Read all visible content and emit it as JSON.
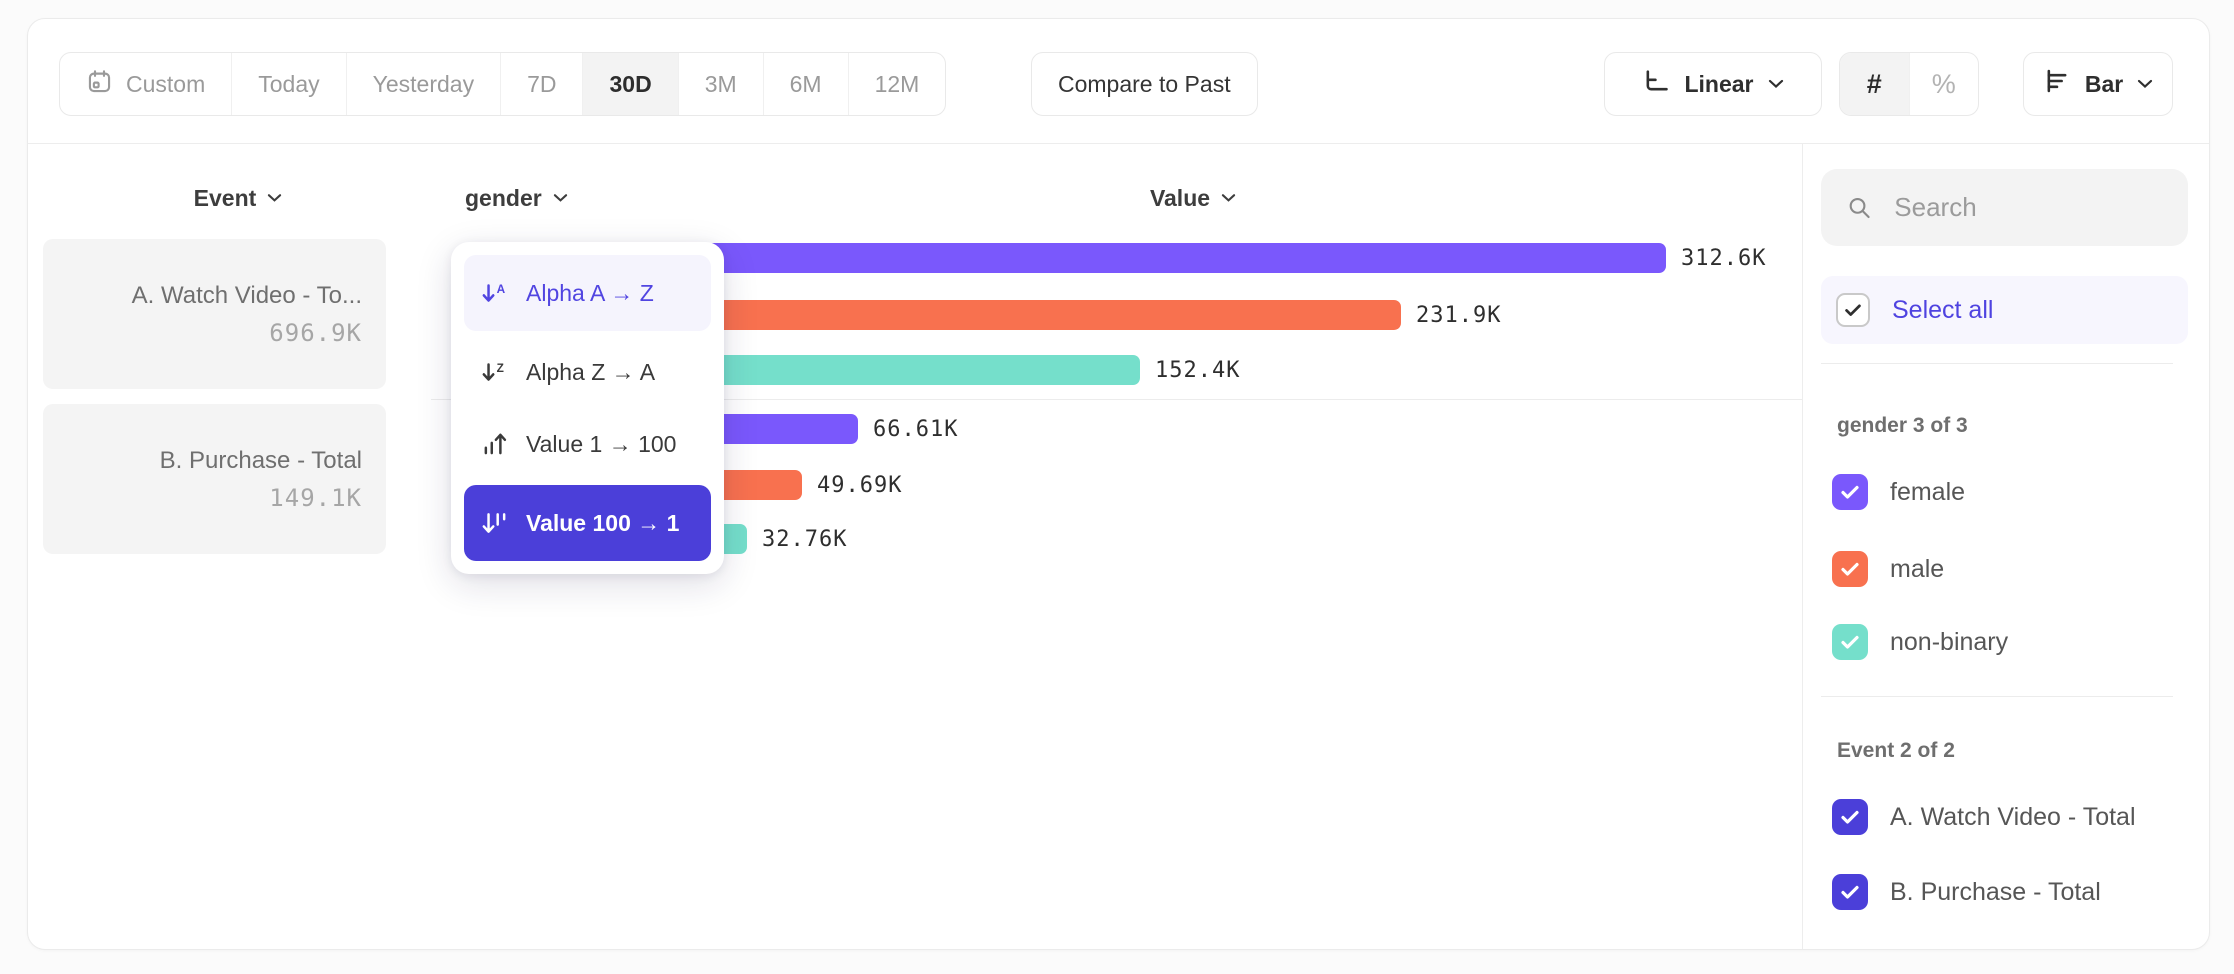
{
  "toolbar": {
    "date_ranges": [
      {
        "label": "Custom",
        "icon": "calendar-icon"
      },
      {
        "label": "Today"
      },
      {
        "label": "Yesterday"
      },
      {
        "label": "7D"
      },
      {
        "label": "30D"
      },
      {
        "label": "3M"
      },
      {
        "label": "6M"
      },
      {
        "label": "12M"
      }
    ],
    "active_range": "30D",
    "compare_label": "Compare to Past",
    "scale_label": "Linear",
    "number_format": {
      "count": "#",
      "percent": "%",
      "active": "#"
    },
    "chart_type_label": "Bar"
  },
  "columns": {
    "event": "Event",
    "breakdown": "gender",
    "value": "Value"
  },
  "events": [
    {
      "name": "A. Watch Video - To...",
      "value": "696.9K"
    },
    {
      "name": "B. Purchase - Total",
      "value": "149.1K"
    }
  ],
  "sort_menu": {
    "items": [
      {
        "label": "Alpha A → Z",
        "icon": "sort-alpha-asc-icon",
        "state": "hover"
      },
      {
        "label": "Alpha Z → A",
        "icon": "sort-alpha-desc-icon",
        "state": "normal"
      },
      {
        "label": "Value 1 → 100",
        "icon": "sort-value-asc-icon",
        "state": "normal"
      },
      {
        "label": "Value 100 → 1",
        "icon": "sort-value-desc-icon",
        "state": "selected"
      }
    ]
  },
  "chart_data": {
    "type": "bar",
    "orientation": "horizontal",
    "max_value_k": 312.6,
    "groups": [
      {
        "event": "A. Watch Video - Total",
        "event_total": "696.9K",
        "bars": [
          {
            "label": "female",
            "value_k": 312.6,
            "display": "312.6K",
            "color": "#7a58fc"
          },
          {
            "label": "male",
            "value_k": 231.9,
            "display": "231.9K",
            "color": "#f8714f"
          },
          {
            "label": "non-binary",
            "value_k": 152.4,
            "display": "152.4K",
            "color": "#75dfcb"
          }
        ]
      },
      {
        "event": "B. Purchase - Total",
        "event_total": "149.1K",
        "bars": [
          {
            "label": "female",
            "value_k": 66.61,
            "display": "66.61K",
            "color": "#7a58fc"
          },
          {
            "label": "male",
            "value_k": 49.69,
            "display": "49.69K",
            "color": "#f8714f"
          },
          {
            "label": "non-binary",
            "value_k": 32.76,
            "display": "32.76K",
            "color": "#75dfcb"
          }
        ]
      }
    ]
  },
  "sidebar": {
    "search_placeholder": "Search",
    "select_all_label": "Select all",
    "sections": [
      {
        "title": "gender 3 of 3",
        "items": [
          {
            "label": "female",
            "color": "#7a58fc",
            "checked": true
          },
          {
            "label": "male",
            "color": "#f8714f",
            "checked": true
          },
          {
            "label": "non-binary",
            "color": "#75dfcb",
            "checked": true
          }
        ]
      },
      {
        "title": "Event 2 of 2",
        "items": [
          {
            "label": "A. Watch Video - Total",
            "color": "#4b3fd9",
            "checked": true
          },
          {
            "label": "B. Purchase - Total",
            "color": "#4b3fd9",
            "checked": true
          }
        ]
      }
    ]
  },
  "colors": {
    "accent_indigo": "#4b3fd9",
    "purple": "#7a58fc",
    "orange": "#f8714f",
    "teal": "#75dfcb"
  }
}
